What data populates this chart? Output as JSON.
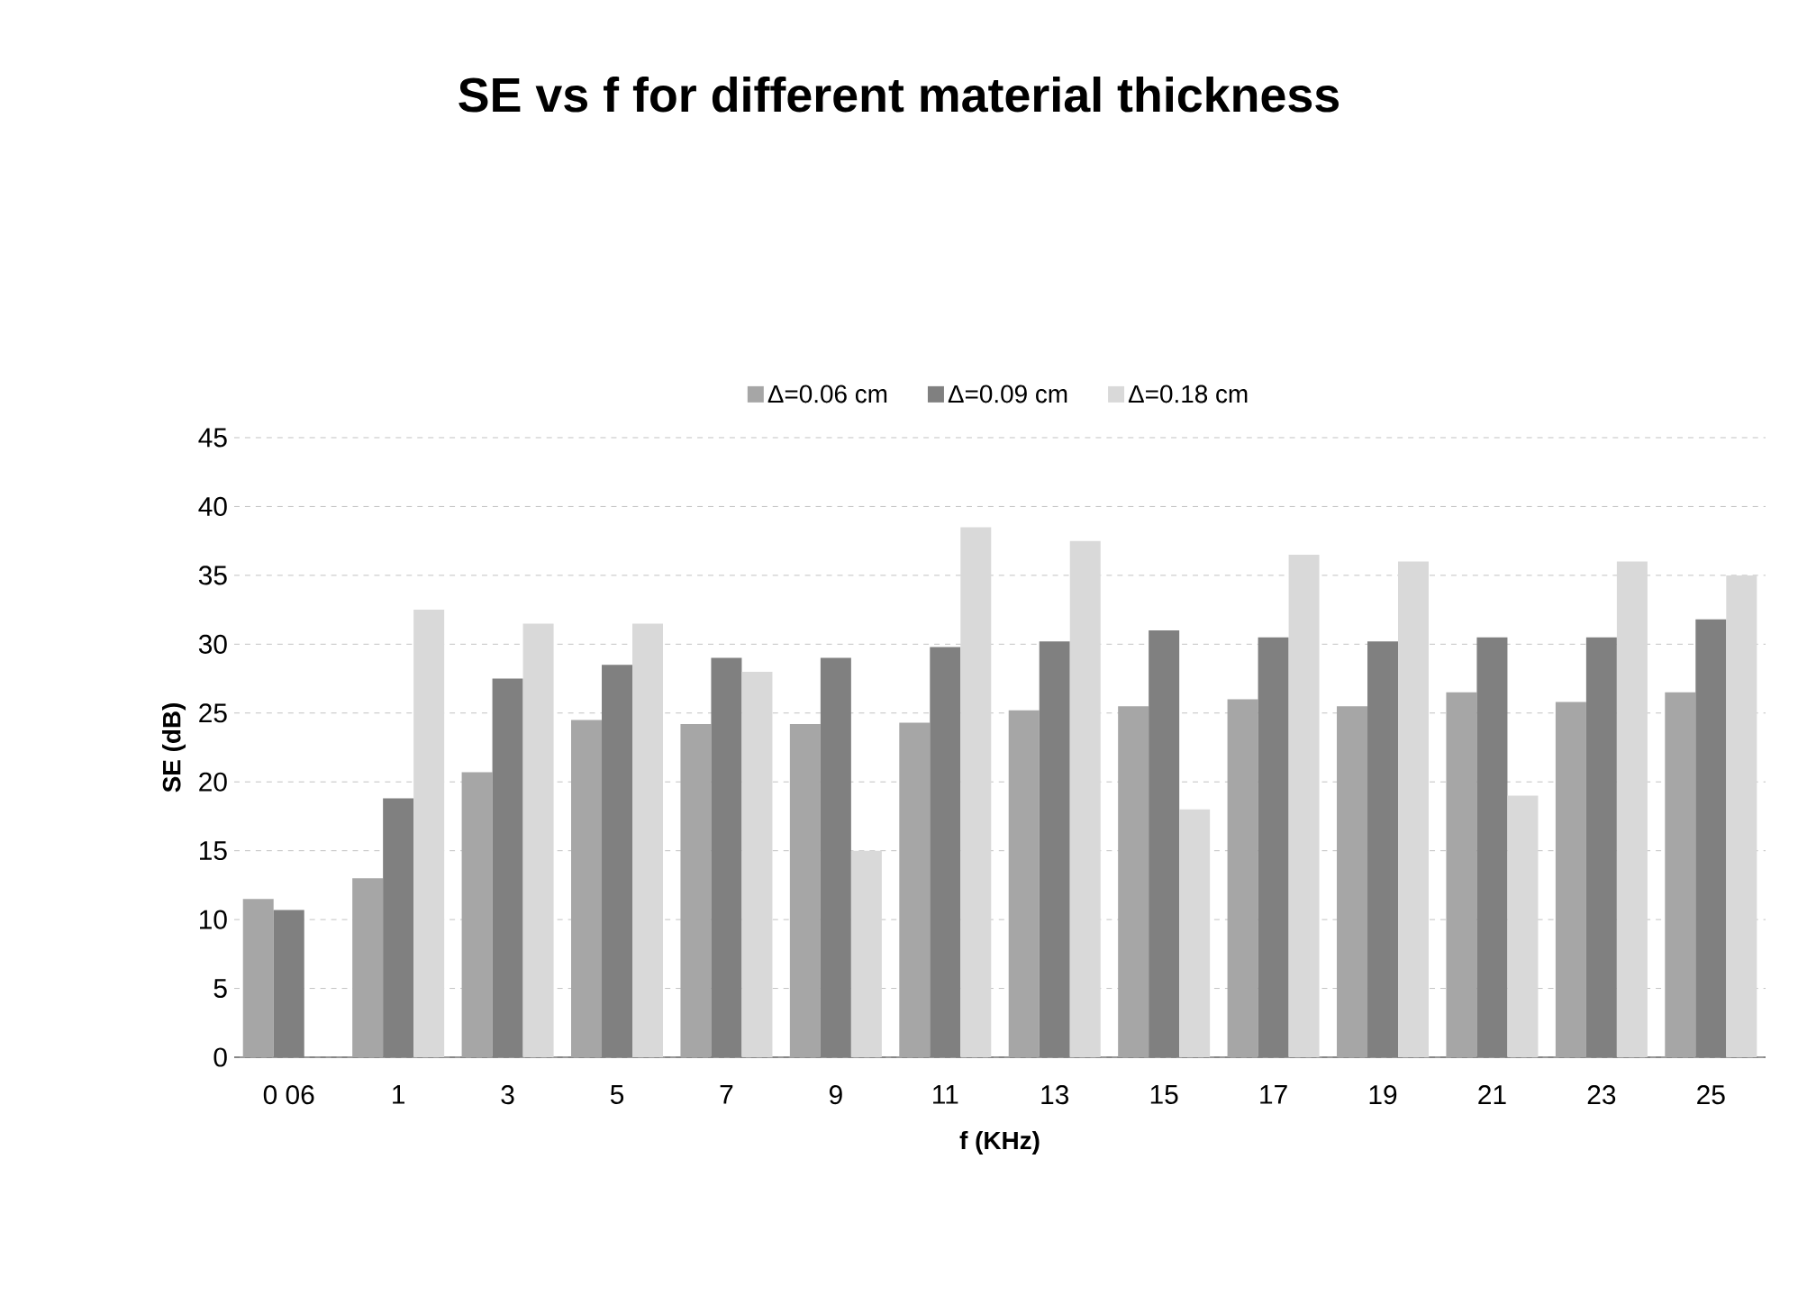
{
  "chart_data": {
    "type": "bar",
    "title": "SE vs f for different material thickness",
    "xlabel": "f (KHz)",
    "ylabel": "SE (dB)",
    "categories": [
      "0 06",
      "1",
      "3",
      "5",
      "7",
      "9",
      "11",
      "13",
      "15",
      "17",
      "19",
      "21",
      "23",
      "25"
    ],
    "series": [
      {
        "name": "Δ=0.06 cm",
        "color": "#a6a6a6",
        "values": [
          11.5,
          13,
          20.7,
          24.5,
          24.2,
          24.2,
          24.3,
          25.2,
          25.5,
          26,
          25.5,
          26.5,
          25.8,
          26.5
        ]
      },
      {
        "name": "Δ=0.09 cm",
        "color": "#808080",
        "values": [
          10.7,
          18.8,
          27.5,
          28.5,
          29,
          29,
          29.8,
          30.2,
          31,
          30.5,
          30.2,
          30.5,
          30.5,
          31.8
        ]
      },
      {
        "name": "Δ=0.18 cm",
        "color": "#d9d9d9",
        "values": [
          null,
          32.5,
          31.5,
          31.5,
          28,
          15,
          38.5,
          37.5,
          18,
          36.5,
          36,
          19,
          36,
          35
        ]
      }
    ],
    "ylim": [
      0,
      45
    ],
    "yticks": [
      0,
      5,
      10,
      15,
      20,
      25,
      30,
      35,
      40,
      45
    ],
    "grid": "y",
    "legend": "top"
  }
}
